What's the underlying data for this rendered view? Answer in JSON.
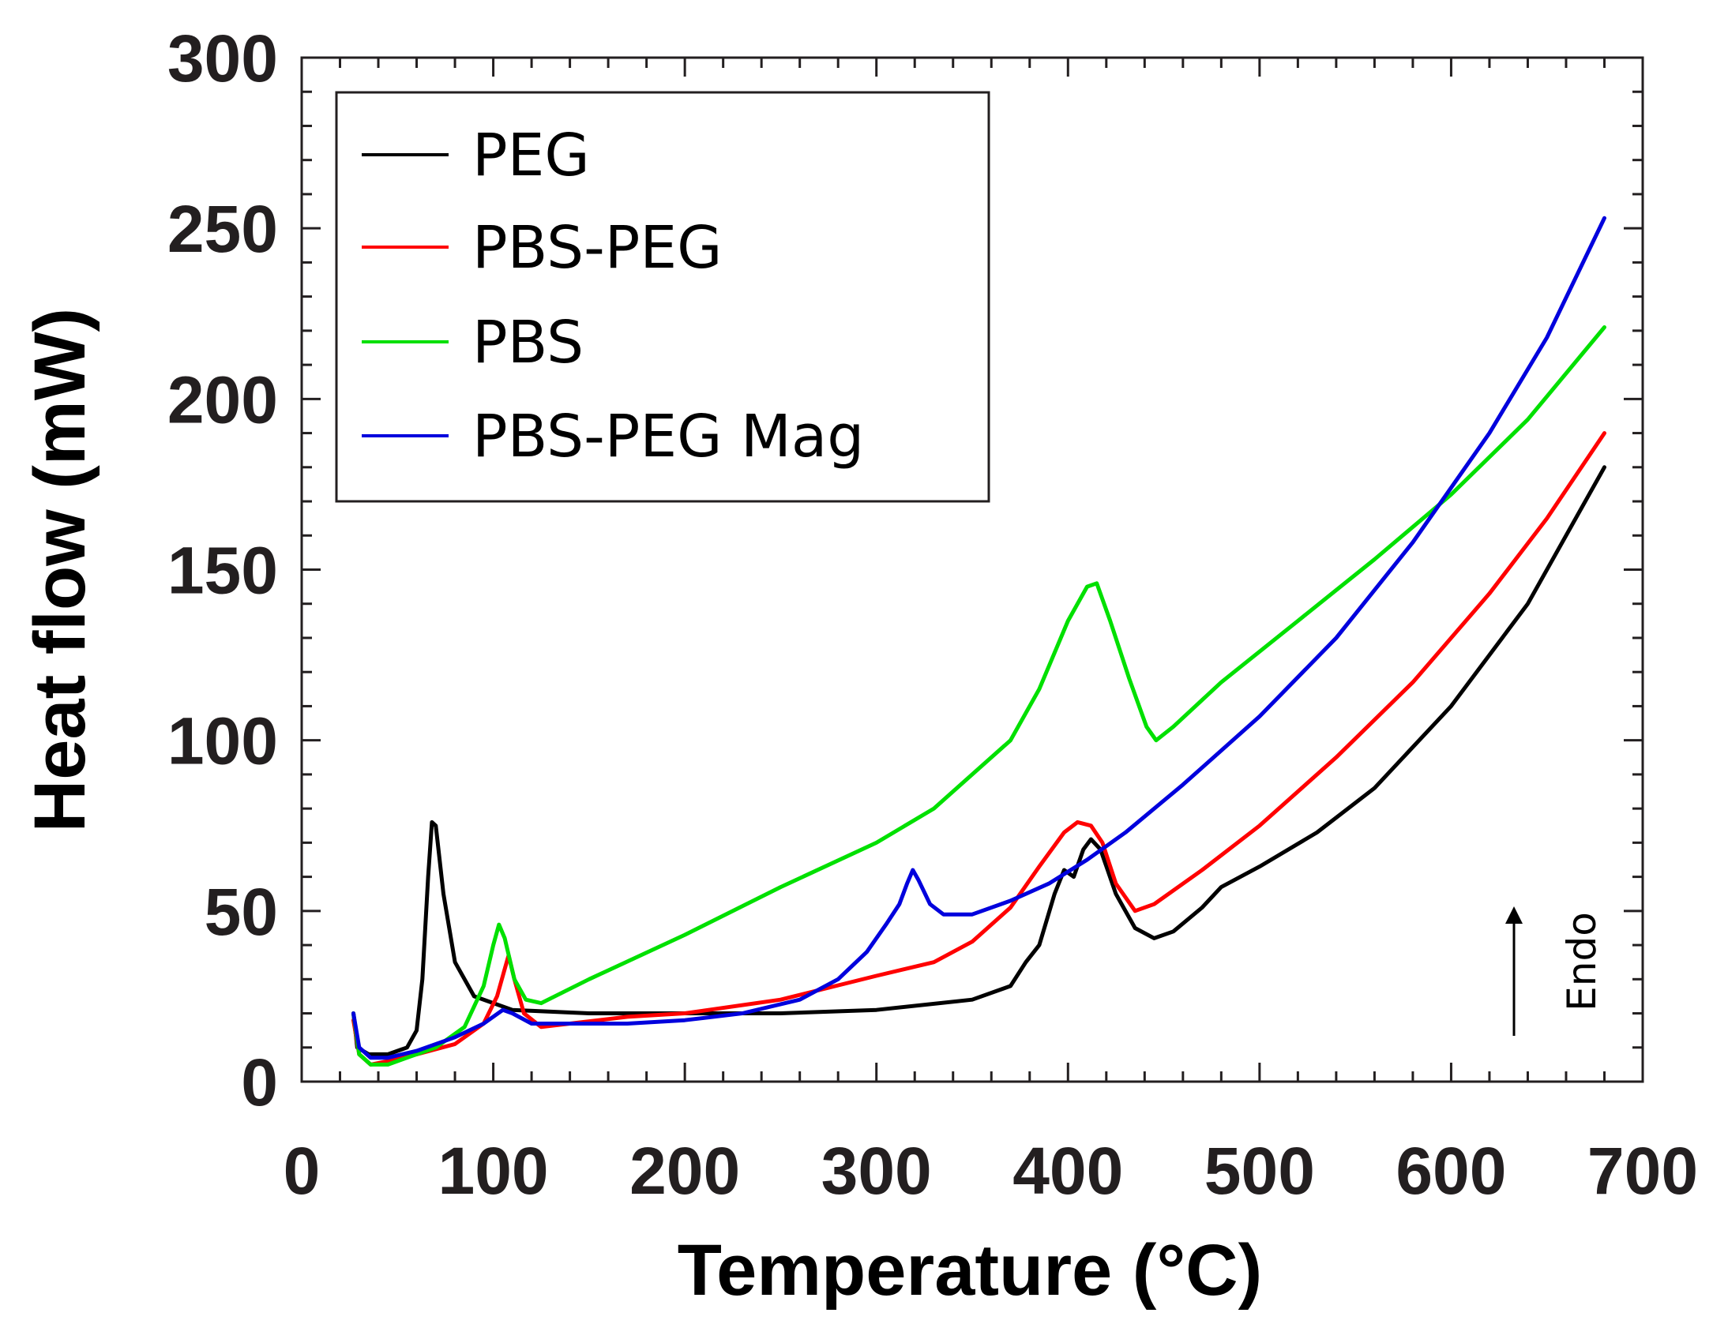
{
  "chart_data": {
    "type": "line",
    "title": "",
    "xlabel": "Temperature (°C)",
    "ylabel": "Heat flow (mW)",
    "xlim": [
      0,
      700
    ],
    "ylim": [
      0,
      300
    ],
    "xticks": [
      0,
      100,
      200,
      300,
      400,
      500,
      600,
      700
    ],
    "yticks": [
      0,
      50,
      100,
      150,
      200,
      250,
      300
    ],
    "grid": false,
    "legend_position": "top-left",
    "annotation": "Endo",
    "series": [
      {
        "name": "PEG",
        "color": "#000000",
        "points": [
          [
            27,
            20
          ],
          [
            29,
            10
          ],
          [
            35,
            8
          ],
          [
            45,
            8
          ],
          [
            55,
            10
          ],
          [
            60,
            15
          ],
          [
            63,
            30
          ],
          [
            66,
            60
          ],
          [
            68,
            76
          ],
          [
            70,
            75
          ],
          [
            74,
            55
          ],
          [
            80,
            35
          ],
          [
            90,
            25
          ],
          [
            110,
            21
          ],
          [
            150,
            20
          ],
          [
            200,
            20
          ],
          [
            250,
            20
          ],
          [
            300,
            21
          ],
          [
            350,
            24
          ],
          [
            370,
            28
          ],
          [
            378,
            35
          ],
          [
            385,
            40
          ],
          [
            393,
            55
          ],
          [
            398,
            62
          ],
          [
            403,
            60
          ],
          [
            408,
            68
          ],
          [
            412,
            71
          ],
          [
            417,
            68
          ],
          [
            425,
            55
          ],
          [
            435,
            45
          ],
          [
            445,
            42
          ],
          [
            455,
            44
          ],
          [
            470,
            51
          ],
          [
            480,
            57
          ],
          [
            500,
            63
          ],
          [
            530,
            73
          ],
          [
            560,
            86
          ],
          [
            600,
            110
          ],
          [
            640,
            140
          ],
          [
            680,
            180
          ]
        ]
      },
      {
        "name": "PBS-PEG",
        "color": "#ff0000",
        "points": [
          [
            27,
            18
          ],
          [
            30,
            8
          ],
          [
            36,
            5
          ],
          [
            45,
            6
          ],
          [
            60,
            8
          ],
          [
            80,
            11
          ],
          [
            95,
            17
          ],
          [
            102,
            25
          ],
          [
            106,
            33
          ],
          [
            108,
            37
          ],
          [
            111,
            30
          ],
          [
            116,
            20
          ],
          [
            125,
            16
          ],
          [
            140,
            17
          ],
          [
            170,
            19
          ],
          [
            200,
            20
          ],
          [
            250,
            24
          ],
          [
            300,
            31
          ],
          [
            330,
            35
          ],
          [
            350,
            41
          ],
          [
            370,
            51
          ],
          [
            385,
            63
          ],
          [
            398,
            73
          ],
          [
            405,
            76
          ],
          [
            412,
            75
          ],
          [
            418,
            70
          ],
          [
            425,
            58
          ],
          [
            435,
            50
          ],
          [
            445,
            52
          ],
          [
            470,
            62
          ],
          [
            500,
            75
          ],
          [
            540,
            95
          ],
          [
            580,
            117
          ],
          [
            620,
            143
          ],
          [
            650,
            165
          ],
          [
            680,
            190
          ]
        ]
      },
      {
        "name": "PBS",
        "color": "#00e000",
        "points": [
          [
            27,
            20
          ],
          [
            30,
            8
          ],
          [
            36,
            5
          ],
          [
            45,
            5
          ],
          [
            55,
            7
          ],
          [
            70,
            10
          ],
          [
            85,
            16
          ],
          [
            95,
            28
          ],
          [
            100,
            40
          ],
          [
            103,
            46
          ],
          [
            106,
            42
          ],
          [
            111,
            30
          ],
          [
            117,
            24
          ],
          [
            125,
            23
          ],
          [
            150,
            30
          ],
          [
            200,
            43
          ],
          [
            250,
            57
          ],
          [
            300,
            70
          ],
          [
            330,
            80
          ],
          [
            350,
            90
          ],
          [
            370,
            100
          ],
          [
            385,
            115
          ],
          [
            400,
            135
          ],
          [
            410,
            145
          ],
          [
            415,
            146
          ],
          [
            422,
            135
          ],
          [
            432,
            118
          ],
          [
            441,
            104
          ],
          [
            446,
            100
          ],
          [
            455,
            104
          ],
          [
            480,
            117
          ],
          [
            520,
            135
          ],
          [
            560,
            153
          ],
          [
            600,
            172
          ],
          [
            640,
            194
          ],
          [
            680,
            221
          ]
        ]
      },
      {
        "name": "PBS-PEG Mag",
        "color": "#0000dd",
        "points": [
          [
            27,
            20
          ],
          [
            30,
            10
          ],
          [
            36,
            7
          ],
          [
            45,
            7
          ],
          [
            60,
            9
          ],
          [
            80,
            13
          ],
          [
            95,
            17
          ],
          [
            105,
            21
          ],
          [
            110,
            20
          ],
          [
            120,
            17
          ],
          [
            140,
            17
          ],
          [
            170,
            17
          ],
          [
            200,
            18
          ],
          [
            230,
            20
          ],
          [
            260,
            24
          ],
          [
            280,
            30
          ],
          [
            295,
            38
          ],
          [
            305,
            46
          ],
          [
            312,
            52
          ],
          [
            316,
            58
          ],
          [
            319,
            62
          ],
          [
            322,
            59
          ],
          [
            328,
            52
          ],
          [
            335,
            49
          ],
          [
            350,
            49
          ],
          [
            370,
            53
          ],
          [
            390,
            58
          ],
          [
            410,
            65
          ],
          [
            430,
            73
          ],
          [
            460,
            87
          ],
          [
            500,
            107
          ],
          [
            540,
            130
          ],
          [
            580,
            158
          ],
          [
            620,
            190
          ],
          [
            650,
            218
          ],
          [
            680,
            253
          ]
        ]
      }
    ]
  },
  "colors": {
    "axis": "#231f20",
    "background": "#ffffff"
  }
}
